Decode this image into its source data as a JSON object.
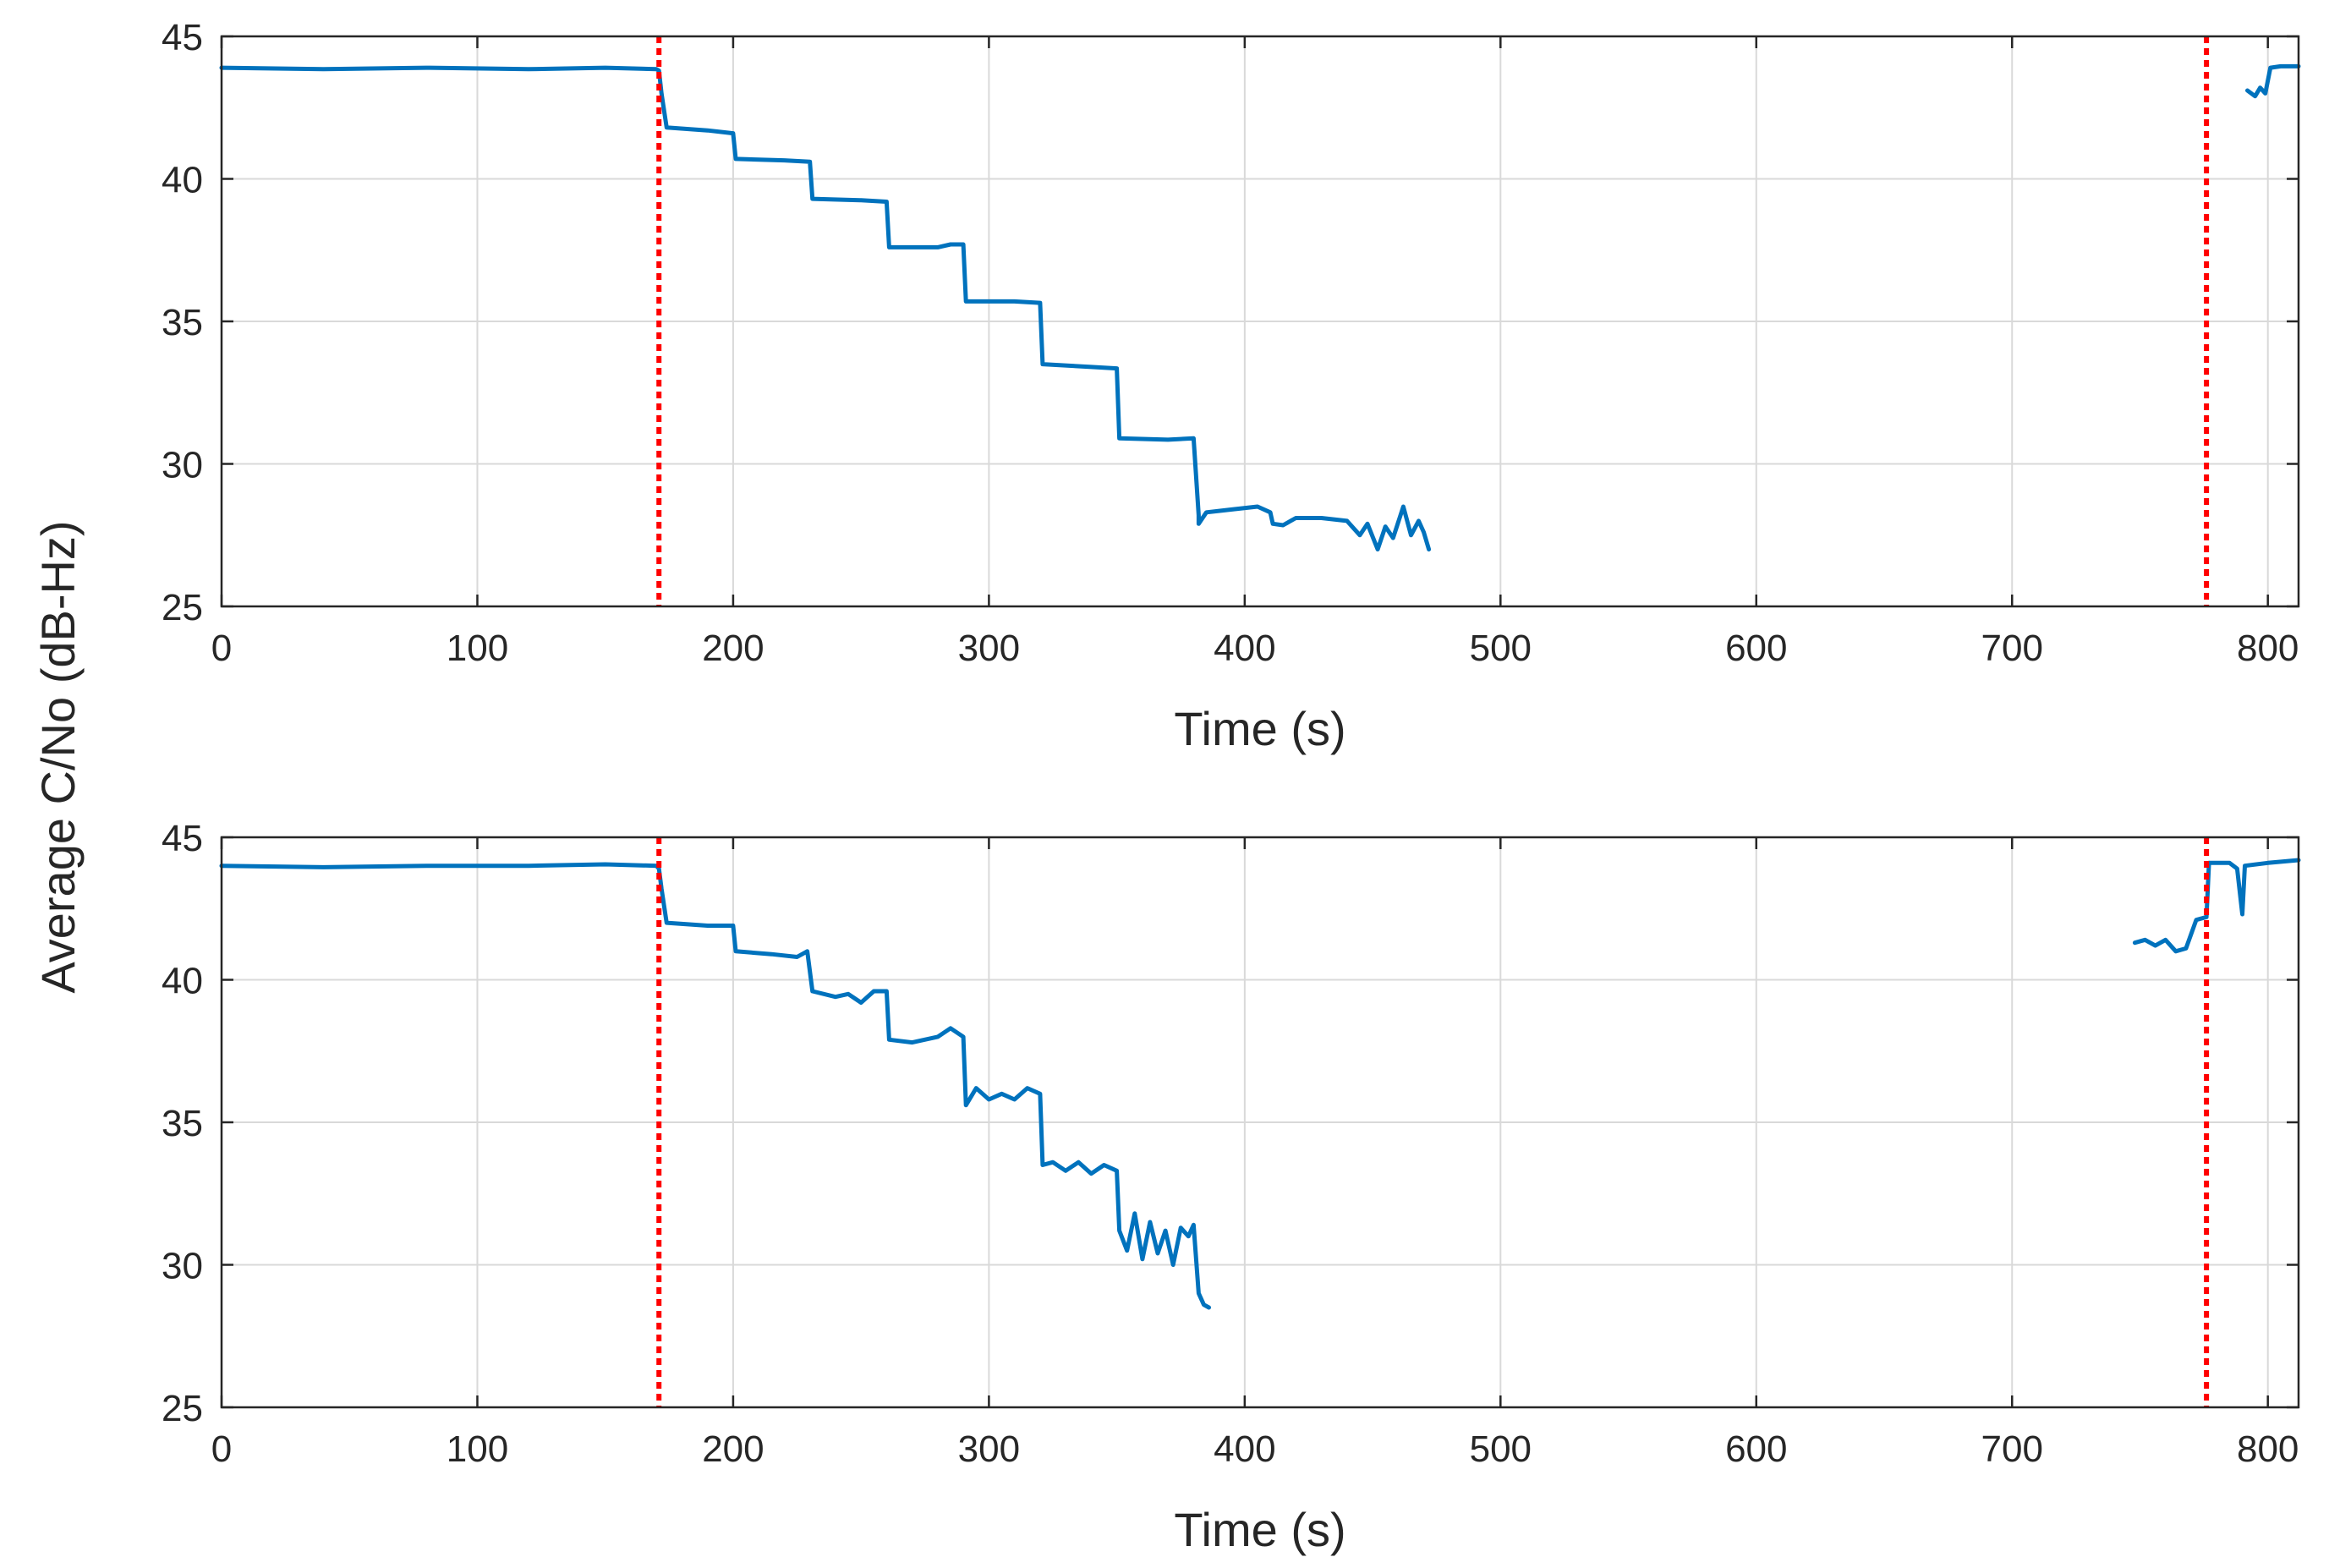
{
  "figure": {
    "shared_ylabel": "Average C/No (dB-Hz)"
  },
  "colors": {
    "series": "#0072BD",
    "marker_line": "#FF0000",
    "grid": "#D9D9D9",
    "axis": "#262626"
  },
  "chart_data": [
    {
      "type": "line",
      "title": "",
      "xlabel": "Time (s)",
      "ylabel": "Average C/No (dB-Hz)",
      "xlim": [
        0,
        812
      ],
      "ylim": [
        25,
        45
      ],
      "xticks": [
        0,
        100,
        200,
        300,
        400,
        500,
        600,
        700,
        800
      ],
      "yticks": [
        25,
        30,
        35,
        40,
        45
      ],
      "grid": true,
      "vlines": [
        171,
        776
      ],
      "series": [
        {
          "name": "Average C/No",
          "segments": [
            [
              [
                0,
                43.9
              ],
              [
                40,
                43.85
              ],
              [
                80,
                43.9
              ],
              [
                120,
                43.85
              ],
              [
                150,
                43.9
              ],
              [
                170,
                43.85
              ],
              [
                171,
                43.8
              ],
              [
                172,
                43.0
              ],
              [
                174,
                41.8
              ],
              [
                190,
                41.7
              ],
              [
                200,
                41.6
              ],
              [
                201,
                40.7
              ],
              [
                220,
                40.65
              ],
              [
                230,
                40.6
              ],
              [
                231,
                39.3
              ],
              [
                250,
                39.25
              ],
              [
                260,
                39.2
              ],
              [
                261,
                37.6
              ],
              [
                280,
                37.6
              ],
              [
                285,
                37.7
              ],
              [
                290,
                37.7
              ],
              [
                291,
                35.7
              ],
              [
                310,
                35.7
              ],
              [
                320,
                35.65
              ],
              [
                321,
                33.5
              ],
              [
                340,
                33.4
              ],
              [
                350,
                33.35
              ],
              [
                351,
                30.9
              ],
              [
                370,
                30.85
              ],
              [
                380,
                30.9
              ],
              [
                382,
                28.2
              ],
              [
                382,
                27.9
              ],
              [
                385,
                28.3
              ],
              [
                395,
                28.4
              ],
              [
                405,
                28.5
              ],
              [
                410,
                28.3
              ],
              [
                411,
                27.9
              ],
              [
                415,
                27.85
              ],
              [
                420,
                28.1
              ],
              [
                430,
                28.1
              ],
              [
                440,
                28.0
              ],
              [
                445,
                27.5
              ],
              [
                448,
                27.9
              ],
              [
                452,
                27.0
              ],
              [
                455,
                27.8
              ],
              [
                458,
                27.4
              ],
              [
                462,
                28.5
              ],
              [
                465,
                27.5
              ],
              [
                468,
                28.0
              ],
              [
                470,
                27.6
              ],
              [
                472,
                27.0
              ]
            ],
            [
              [
                792,
                43.1
              ],
              [
                795,
                42.9
              ],
              [
                797,
                43.2
              ],
              [
                799,
                43.0
              ],
              [
                801,
                43.9
              ],
              [
                805,
                43.95
              ],
              [
                812,
                43.95
              ]
            ]
          ]
        }
      ]
    },
    {
      "type": "line",
      "title": "",
      "xlabel": "Time (s)",
      "ylabel": "Average C/No (dB-Hz)",
      "xlim": [
        0,
        812
      ],
      "ylim": [
        25,
        45
      ],
      "xticks": [
        0,
        100,
        200,
        300,
        400,
        500,
        600,
        700,
        800
      ],
      "yticks": [
        25,
        30,
        35,
        40,
        45
      ],
      "grid": true,
      "vlines": [
        171,
        776
      ],
      "series": [
        {
          "name": "Average C/No",
          "segments": [
            [
              [
                0,
                44.0
              ],
              [
                40,
                43.95
              ],
              [
                80,
                44.0
              ],
              [
                120,
                44.0
              ],
              [
                150,
                44.05
              ],
              [
                170,
                44.0
              ],
              [
                171,
                43.9
              ],
              [
                172,
                43.2
              ],
              [
                174,
                42.0
              ],
              [
                190,
                41.9
              ],
              [
                200,
                41.9
              ],
              [
                201,
                41.0
              ],
              [
                215,
                40.9
              ],
              [
                225,
                40.8
              ],
              [
                229,
                41.0
              ],
              [
                231,
                39.6
              ],
              [
                240,
                39.4
              ],
              [
                245,
                39.5
              ],
              [
                250,
                39.2
              ],
              [
                255,
                39.6
              ],
              [
                260,
                39.6
              ],
              [
                261,
                37.9
              ],
              [
                270,
                37.8
              ],
              [
                280,
                38.0
              ],
              [
                285,
                38.3
              ],
              [
                290,
                38.0
              ],
              [
                291,
                35.6
              ],
              [
                295,
                36.2
              ],
              [
                300,
                35.8
              ],
              [
                305,
                36.0
              ],
              [
                310,
                35.8
              ],
              [
                315,
                36.2
              ],
              [
                320,
                36.0
              ],
              [
                321,
                33.5
              ],
              [
                325,
                33.6
              ],
              [
                330,
                33.3
              ],
              [
                335,
                33.6
              ],
              [
                340,
                33.2
              ],
              [
                345,
                33.5
              ],
              [
                350,
                33.3
              ],
              [
                351,
                31.2
              ],
              [
                354,
                30.5
              ],
              [
                357,
                31.8
              ],
              [
                360,
                30.2
              ],
              [
                363,
                31.5
              ],
              [
                366,
                30.4
              ],
              [
                369,
                31.2
              ],
              [
                372,
                30.0
              ],
              [
                375,
                31.3
              ],
              [
                378,
                31.0
              ],
              [
                380,
                31.4
              ],
              [
                382,
                29.0
              ],
              [
                384,
                28.6
              ],
              [
                386,
                28.5
              ]
            ],
            [
              [
                748,
                41.3
              ],
              [
                752,
                41.4
              ],
              [
                756,
                41.2
              ],
              [
                760,
                41.4
              ],
              [
                764,
                41.0
              ],
              [
                768,
                41.1
              ],
              [
                772,
                42.1
              ],
              [
                776,
                42.2
              ],
              [
                777,
                44.1
              ],
              [
                785,
                44.1
              ],
              [
                788,
                43.9
              ],
              [
                790,
                42.3
              ],
              [
                791,
                44.0
              ],
              [
                800,
                44.1
              ],
              [
                812,
                44.2
              ]
            ]
          ]
        }
      ]
    }
  ]
}
